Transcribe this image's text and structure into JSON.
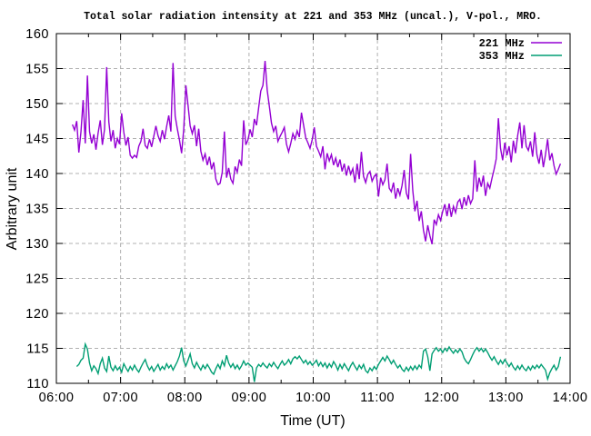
{
  "figure": {
    "background_color": "#ffffff",
    "border_color": "#000000",
    "grid_color": "#b0b0b0"
  },
  "chart_data": {
    "type": "line",
    "title": "Total solar radiation intensity at 221 and 353 MHz (uncal.), V-pol., MRO.",
    "xlabel": "Time (UT)",
    "ylabel": "Arbitrary unit",
    "xlim": [
      6,
      14
    ],
    "ylim": [
      110,
      160
    ],
    "grid": true,
    "legend_position": "top-right-inside",
    "x_tick_labels": [
      "06:00",
      "07:00",
      "08:00",
      "09:00",
      "10:00",
      "11:00",
      "12:00",
      "13:00",
      "14:00"
    ],
    "x_tick_values": [
      6,
      7,
      8,
      9,
      10,
      11,
      12,
      13,
      14
    ],
    "x_minor_tick_values": [
      6.5,
      7.5,
      8.5,
      9.5,
      10.5,
      11.5,
      12.5,
      13.5
    ],
    "y_tick_values": [
      110,
      115,
      120,
      125,
      130,
      135,
      140,
      145,
      150,
      155,
      160
    ],
    "y_tick_labels": [
      "110",
      "115",
      "120",
      "125",
      "130",
      "135",
      "140",
      "145",
      "150",
      "155",
      "160"
    ],
    "series": [
      {
        "name": "221 MHz",
        "color": "#9400d3",
        "start_time_hours": 6.25,
        "step_minutes": 2,
        "values": [
          147.0,
          146.2,
          147.5,
          143.0,
          146.0,
          150.5,
          144.3,
          154.0,
          146.0,
          144.3,
          145.6,
          143.4,
          145.8,
          147.6,
          144.1,
          146.3,
          155.2,
          147.4,
          144.6,
          146.2,
          143.6,
          145.0,
          144.2,
          148.6,
          145.9,
          144.0,
          145.2,
          142.6,
          142.2,
          142.6,
          142.3,
          143.9,
          144.6,
          146.4,
          144.0,
          143.6,
          144.9,
          143.8,
          145.3,
          146.8,
          145.4,
          144.6,
          146.2,
          144.9,
          146.7,
          148.3,
          146.0,
          155.8,
          148.2,
          146.4,
          144.8,
          142.9,
          146.3,
          152.6,
          149.8,
          146.8,
          145.7,
          146.9,
          143.9,
          146.4,
          143.2,
          141.9,
          142.8,
          141.2,
          142.4,
          140.6,
          141.6,
          139.2,
          138.4,
          138.6,
          140.2,
          146.0,
          139.4,
          140.8,
          139.2,
          138.6,
          141.0,
          140.2,
          142.0,
          141.1,
          147.6,
          144.1,
          144.8,
          146.3,
          145.2,
          147.8,
          146.9,
          149.4,
          151.8,
          152.6,
          156.1,
          151.9,
          149.6,
          147.2,
          146.0,
          146.8,
          144.6,
          145.3,
          145.9,
          146.6,
          144.2,
          143.1,
          144.3,
          145.7,
          144.9,
          146.1,
          145.2,
          148.7,
          146.9,
          145.1,
          144.4,
          143.6,
          144.8,
          146.6,
          143.9,
          143.2,
          142.4,
          143.9,
          140.6,
          142.9,
          141.8,
          142.7,
          141.2,
          142.2,
          140.9,
          142.0,
          140.3,
          141.4,
          139.7,
          141.1,
          139.9,
          140.7,
          138.7,
          141.4,
          139.2,
          143.1,
          139.6,
          138.7,
          139.9,
          140.3,
          138.9,
          139.6,
          139.9,
          136.7,
          139.4,
          138.4,
          139.1,
          141.4,
          137.9,
          137.4,
          138.7,
          136.4,
          137.9,
          136.9,
          138.3,
          140.5,
          137.2,
          136.3,
          142.8,
          137.6,
          134.6,
          136.1,
          133.2,
          134.6,
          131.9,
          130.3,
          132.6,
          131.1,
          129.9,
          133.4,
          132.7,
          134.1,
          133.3,
          134.6,
          135.6,
          133.9,
          135.7,
          133.8,
          135.3,
          134.4,
          135.9,
          136.3,
          134.9,
          136.6,
          135.4,
          136.9,
          135.7,
          136.4,
          141.9,
          137.4,
          139.4,
          138.1,
          139.7,
          136.8,
          138.6,
          137.9,
          139.3,
          140.6,
          142.1,
          147.9,
          143.6,
          141.9,
          144.4,
          142.6,
          143.9,
          141.6,
          144.7,
          142.9,
          145.4,
          147.3,
          143.6,
          146.9,
          143.9,
          143.3,
          144.6,
          142.4,
          145.9,
          142.7,
          141.4,
          143.4,
          140.9,
          142.7,
          144.9,
          141.9,
          142.9,
          141.1,
          139.9,
          140.6,
          141.4
        ]
      },
      {
        "name": "353 MHz",
        "color": "#009e73",
        "start_time_hours": 6.3167,
        "step_minutes": 2,
        "values": [
          112.4,
          112.7,
          113.3,
          113.6,
          115.6,
          114.9,
          112.9,
          111.8,
          112.5,
          112.1,
          111.4,
          112.8,
          113.6,
          112.2,
          111.7,
          113.9,
          112.3,
          111.8,
          112.5,
          111.9,
          112.3,
          111.6,
          112.8,
          112.2,
          111.7,
          112.4,
          111.9,
          112.6,
          112.0,
          111.6,
          112.3,
          112.9,
          113.4,
          112.5,
          111.9,
          112.4,
          111.7,
          112.2,
          112.7,
          111.9,
          112.4,
          112.0,
          112.8,
          112.2,
          112.6,
          111.9,
          112.5,
          113.1,
          113.9,
          115.1,
          113.2,
          112.5,
          113.3,
          114.2,
          112.8,
          112.2,
          113.0,
          112.4,
          111.9,
          112.6,
          112.1,
          112.7,
          112.2,
          111.6,
          111.3,
          112.1,
          112.7,
          112.1,
          113.2,
          112.5,
          114.0,
          112.9,
          112.3,
          112.8,
          112.1,
          112.6,
          112.0,
          112.5,
          113.2,
          112.6,
          112.9,
          112.6,
          112.3,
          110.2,
          112.2,
          112.7,
          112.4,
          112.9,
          112.5,
          112.2,
          112.8,
          112.4,
          113.0,
          112.5,
          112.1,
          112.7,
          113.2,
          112.6,
          112.9,
          113.4,
          112.8,
          113.5,
          113.8,
          113.5,
          113.9,
          113.4,
          112.9,
          113.3,
          112.7,
          113.1,
          112.6,
          112.9,
          113.3,
          112.5,
          113.0,
          112.4,
          112.9,
          112.2,
          112.8,
          112.3,
          113.1,
          112.6,
          111.9,
          112.7,
          112.1,
          112.8,
          112.3,
          111.8,
          112.5,
          113.0,
          112.4,
          111.9,
          112.6,
          112.1,
          112.7,
          111.8,
          111.5,
          112.2,
          111.8,
          112.4,
          112.0,
          112.7,
          113.2,
          113.7,
          113.2,
          113.9,
          113.4,
          112.8,
          113.3,
          112.7,
          112.2,
          112.6,
          112.0,
          111.7,
          112.3,
          111.8,
          112.4,
          111.9,
          112.5,
          112.0,
          112.6,
          112.2,
          114.6,
          114.9,
          113.8,
          111.8,
          114.2,
          114.7,
          115.1,
          114.6,
          114.9,
          114.4,
          115.0,
          114.6,
          115.2,
          114.7,
          114.3,
          114.8,
          114.4,
          114.9,
          114.5,
          113.6,
          113.1,
          112.8,
          113.4,
          114.1,
          114.7,
          115.1,
          114.6,
          115.0,
          114.5,
          114.9,
          114.4,
          113.8,
          113.3,
          113.8,
          113.2,
          112.7,
          113.3,
          112.8,
          113.4,
          112.9,
          112.4,
          112.9,
          112.3,
          111.9,
          112.5,
          112.0,
          112.6,
          112.1,
          111.8,
          112.4,
          111.9,
          112.5,
          112.1,
          112.6,
          112.2,
          112.7,
          112.3,
          111.9,
          110.6,
          111.5,
          112.1,
          112.6,
          111.9,
          112.4,
          113.8
        ]
      }
    ]
  }
}
